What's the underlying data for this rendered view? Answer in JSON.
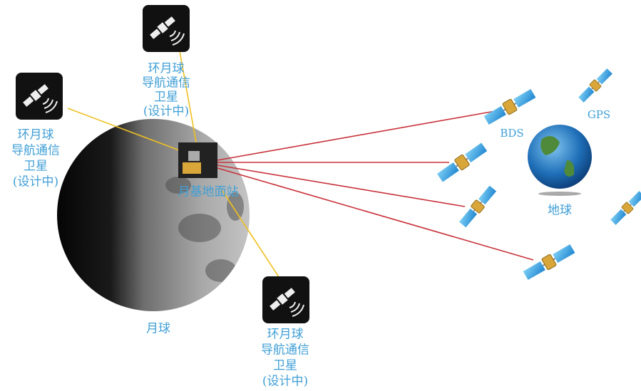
{
  "satellites": [
    {
      "label_lines": [
        "环月球",
        "导航通信",
        "卫星",
        "(设计中)"
      ]
    },
    {
      "label_lines": [
        "环月球",
        "导航通信",
        "卫星",
        "(设计中)"
      ]
    },
    {
      "label_lines": [
        "环月球",
        "导航通信",
        "卫星",
        "(设计中)"
      ]
    }
  ],
  "station_label": "月基地面站",
  "moon_label": "月球",
  "earth_label": "地球",
  "constellations": [
    "BDS",
    "GPS"
  ]
}
